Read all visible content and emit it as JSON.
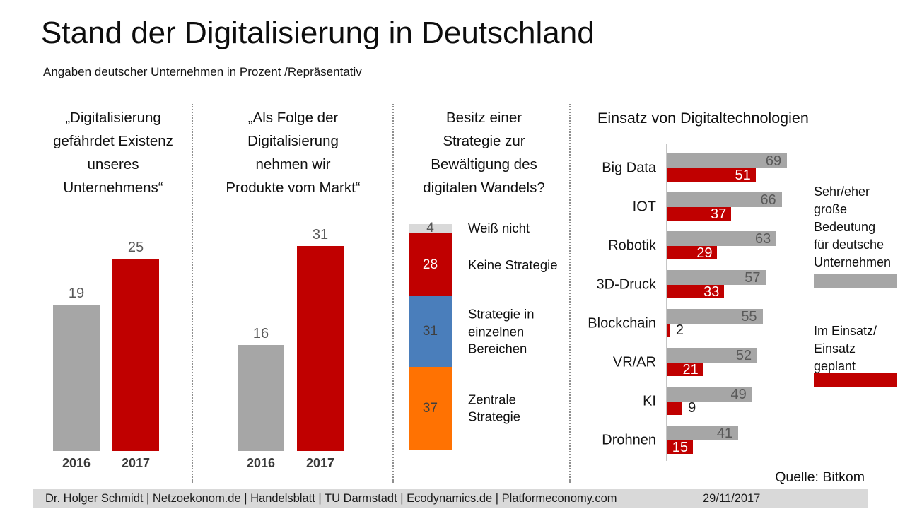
{
  "header": {
    "title": "Stand der Digitalisierung in Deutschland",
    "subtitle": "Angaben deutscher Unternehmen in Prozent /Repräsentativ"
  },
  "colors": {
    "red": "#C00000",
    "gray": "#A6A6A6",
    "light_gray": "#D9D9D9",
    "blue": "#4A7EBB",
    "orange": "#FF7202",
    "value_text_gray": "#595959",
    "footer_bg": "#D9D9D9"
  },
  "chart_data": [
    {
      "type": "bar",
      "title": "„Digitalisierung\ngefährdet Existenz\nunseres\nUnternehmens“",
      "categories": [
        "2016",
        "2017"
      ],
      "values": [
        19,
        25
      ],
      "colors": [
        "gray",
        "red"
      ],
      "unit": "percent",
      "ylim": [
        0,
        31
      ]
    },
    {
      "type": "bar",
      "title": "„Als Folge der\nDigitalisierung\nnehmen wir\nProdukte vom Markt“",
      "categories": [
        "2016",
        "2017"
      ],
      "values": [
        16,
        31
      ],
      "colors": [
        "gray",
        "red"
      ],
      "unit": "percent",
      "ylim": [
        0,
        31
      ]
    },
    {
      "type": "stacked_bar",
      "title": "Besitz einer\nStrategie zur\nBewältigung des\ndigitalen Wandels?",
      "unit": "percent",
      "segments": [
        {
          "label": "Weiß nicht",
          "value": 4,
          "color": "light_gray",
          "text_color": "#595959"
        },
        {
          "label": "Keine Strategie",
          "value": 28,
          "color": "red",
          "text_color": "#ffffff"
        },
        {
          "label": "Strategie in\neinzelnen\nBereichen",
          "value": 31,
          "color": "blue",
          "text_color": "#3f3f3f"
        },
        {
          "label": "Zentrale\nStrategie",
          "value": 37,
          "color": "orange",
          "text_color": "#3f3f3f"
        }
      ]
    },
    {
      "type": "bar",
      "orientation": "horizontal",
      "title": "Einsatz von Digitaltechnologien",
      "categories": [
        "Big Data",
        "IOT",
        "Robotik",
        "3D-Druck",
        "Blockchain",
        "VR/AR",
        "KI",
        "Drohnen"
      ],
      "series": [
        {
          "name": "Sehr/eher\ngroße\nBedeutung\nfür deutsche\nUnternehmen",
          "color": "gray",
          "values": [
            69,
            66,
            63,
            57,
            55,
            52,
            49,
            41
          ]
        },
        {
          "name": "Im Einsatz/\nEinsatz\ngeplant",
          "color": "red",
          "values": [
            51,
            37,
            29,
            33,
            2,
            21,
            9,
            15
          ]
        }
      ],
      "unit": "percent",
      "xlim": [
        0,
        70
      ],
      "legend_position": "right",
      "source": "Quelle: Bitkom"
    }
  ],
  "footer": {
    "credits": "Dr. Holger Schmidt  |  Netzoekonom.de |  Handelsblatt  |  TU Darmstadt   | Ecodynamics.de  |  Platformeconomy.com",
    "date": "29/11/2017"
  }
}
